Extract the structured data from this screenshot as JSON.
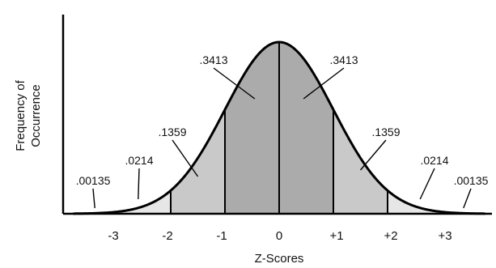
{
  "chart_data": {
    "type": "area",
    "title": "",
    "xlabel": "Z-Scores",
    "ylabel_lines": [
      "Frequency of",
      "Occurrence"
    ],
    "xlim": [
      -3.8,
      3.8
    ],
    "x_ticks": [
      {
        "value": -3,
        "label": "-3"
      },
      {
        "value": -2,
        "label": "-2"
      },
      {
        "value": -1,
        "label": "-1"
      },
      {
        "value": 0,
        "label": "0"
      },
      {
        "value": 1,
        "label": "+1"
      },
      {
        "value": 2,
        "label": "+2"
      },
      {
        "value": 3,
        "label": "+3"
      }
    ],
    "regions": [
      {
        "from": -3.8,
        "to": -3,
        "shade": "none"
      },
      {
        "from": -3,
        "to": -2,
        "shade": "light"
      },
      {
        "from": -2,
        "to": -1,
        "shade": "medium"
      },
      {
        "from": -1,
        "to": 0,
        "shade": "dark"
      },
      {
        "from": 0,
        "to": 1,
        "shade": "dark"
      },
      {
        "from": 1,
        "to": 2,
        "shade": "medium"
      },
      {
        "from": 2,
        "to": 3,
        "shade": "light"
      },
      {
        "from": 3,
        "to": 3.8,
        "shade": "none"
      }
    ],
    "annotations": [
      {
        "label": ".00135",
        "region_x": -3.4
      },
      {
        "label": ".0214",
        "region_x": -2.6
      },
      {
        "label": ".1359",
        "region_x": -1.5
      },
      {
        "label": ".3413",
        "region_x": -0.45
      },
      {
        "label": ".3413",
        "region_x": 0.45
      },
      {
        "label": ".1359",
        "region_x": 1.5
      },
      {
        "label": ".0214",
        "region_x": 2.6
      },
      {
        "label": ".00135",
        "region_x": 3.4
      }
    ],
    "colors": {
      "curve": "#000000",
      "shade_light": "#e6e6e6",
      "shade_medium": "#c9c9c9",
      "shade_dark": "#ababab"
    }
  }
}
